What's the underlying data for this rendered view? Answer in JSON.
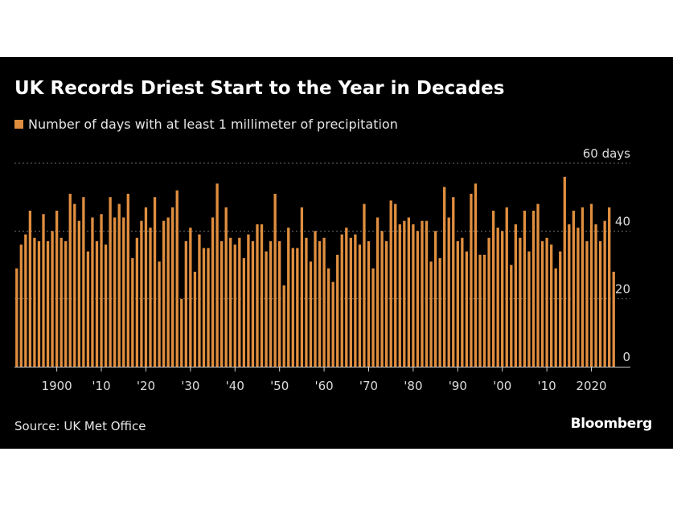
{
  "header": {
    "title": "UK Records Driest Start to the Year in Decades",
    "legend_label": "Number of days with at least 1 millimeter of precipitation"
  },
  "footer": {
    "source": "Source: UK Met Office",
    "brand": "Bloomberg"
  },
  "colors": {
    "background": "#000000",
    "bar": "#df8e3f",
    "gridline": "#6a6a6a"
  },
  "chart_data": {
    "type": "bar",
    "x": [
      1891,
      1892,
      1893,
      1894,
      1895,
      1896,
      1897,
      1898,
      1899,
      1900,
      1901,
      1902,
      1903,
      1904,
      1905,
      1906,
      1907,
      1908,
      1909,
      1910,
      1911,
      1912,
      1913,
      1914,
      1915,
      1916,
      1917,
      1918,
      1919,
      1920,
      1921,
      1922,
      1923,
      1924,
      1925,
      1926,
      1927,
      1928,
      1929,
      1930,
      1931,
      1932,
      1933,
      1934,
      1935,
      1936,
      1937,
      1938,
      1939,
      1940,
      1941,
      1942,
      1943,
      1944,
      1945,
      1946,
      1947,
      1948,
      1949,
      1950,
      1951,
      1952,
      1953,
      1954,
      1955,
      1956,
      1957,
      1958,
      1959,
      1960,
      1961,
      1962,
      1963,
      1964,
      1965,
      1966,
      1967,
      1968,
      1969,
      1970,
      1971,
      1972,
      1973,
      1974,
      1975,
      1976,
      1977,
      1978,
      1979,
      1980,
      1981,
      1982,
      1983,
      1984,
      1985,
      1986,
      1987,
      1988,
      1989,
      1990,
      1991,
      1992,
      1993,
      1994,
      1995,
      1996,
      1997,
      1998,
      1999,
      2000,
      2001,
      2002,
      2003,
      2004,
      2005,
      2006,
      2007,
      2008,
      2009,
      2010,
      2011,
      2012,
      2013,
      2014,
      2015,
      2016,
      2017,
      2018,
      2019,
      2020,
      2021,
      2022,
      2023,
      2024,
      2025
    ],
    "values": [
      29,
      36,
      39,
      46,
      38,
      37,
      45,
      37,
      40,
      46,
      38,
      37,
      51,
      48,
      43,
      50,
      34,
      44,
      37,
      45,
      36,
      50,
      44,
      48,
      44,
      51,
      32,
      38,
      43,
      47,
      41,
      50,
      31,
      43,
      44,
      47,
      52,
      20,
      37,
      41,
      28,
      39,
      35,
      35,
      44,
      54,
      37,
      47,
      38,
      36,
      38,
      32,
      39,
      37,
      42,
      42,
      34,
      37,
      51,
      37,
      24,
      41,
      35,
      35,
      47,
      38,
      31,
      40,
      37,
      38,
      29,
      25,
      33,
      39,
      41,
      38,
      39,
      36,
      48,
      37,
      29,
      44,
      40,
      37,
      49,
      48,
      42,
      43,
      44,
      42,
      40,
      43,
      43,
      31,
      40,
      32,
      53,
      44,
      50,
      37,
      38,
      34,
      51,
      54,
      33,
      33,
      38,
      46,
      41,
      40,
      47,
      30,
      42,
      38,
      46,
      34,
      46,
      48,
      37,
      38,
      36,
      29,
      34,
      56,
      42,
      46,
      41,
      47,
      37,
      48,
      42,
      37,
      43,
      47,
      28
    ],
    "x_tick_labels": [
      {
        "x": 1900,
        "label": "1900"
      },
      {
        "x": 1910,
        "label": "'10"
      },
      {
        "x": 1920,
        "label": "'20"
      },
      {
        "x": 1930,
        "label": "'30"
      },
      {
        "x": 1940,
        "label": "'40"
      },
      {
        "x": 1950,
        "label": "'50"
      },
      {
        "x": 1960,
        "label": "'60"
      },
      {
        "x": 1970,
        "label": "'70"
      },
      {
        "x": 1980,
        "label": "'80"
      },
      {
        "x": 1990,
        "label": "'90"
      },
      {
        "x": 2000,
        "label": "'00"
      },
      {
        "x": 2010,
        "label": "'10"
      },
      {
        "x": 2020,
        "label": "2020"
      }
    ],
    "y_ticks": [
      {
        "value": 0,
        "label": "0"
      },
      {
        "value": 20,
        "label": "20"
      },
      {
        "value": 40,
        "label": "40"
      },
      {
        "value": 60,
        "label": "60 days"
      }
    ],
    "ylim": [
      0,
      60
    ],
    "xlim": [
      1891,
      2025
    ],
    "grid": true,
    "legend_position": "top-left",
    "orientation": "vertical"
  }
}
